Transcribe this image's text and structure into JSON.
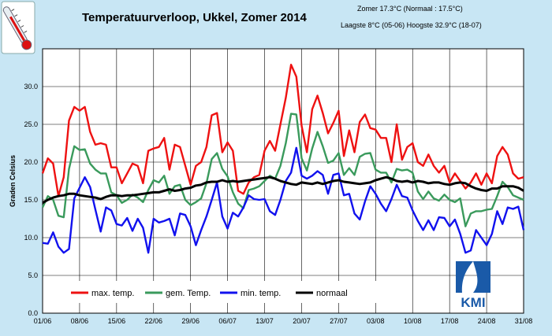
{
  "header": {
    "title": "Temperatuurverloop, Ukkel, Zomer 2014",
    "season_line": "Zomer 17.3°C (Normaal : 17.5°C)",
    "extremes_line": "Laagste 8°C (05-06) Hoogste 32.9°C (18-07)"
  },
  "logo": {
    "text": "KMI"
  },
  "chart_data": {
    "type": "line",
    "ylabel": "Graden Celsius",
    "xlabel": "",
    "ylim": [
      0,
      35
    ],
    "yticks": [
      0,
      5,
      10,
      15,
      20,
      25,
      30
    ],
    "ytick_labels": [
      "0.0",
      "5.0",
      "10.0",
      "15.0",
      "20.0",
      "25.0",
      "30.0"
    ],
    "x_tick_labels": [
      "01/06",
      "08/06",
      "15/06",
      "22/06",
      "29/06",
      "06/07",
      "13/07",
      "20/07",
      "27/07",
      "03/08",
      "10/08",
      "17/08",
      "24/08",
      "31/08"
    ],
    "x_tick_positions": [
      0,
      7,
      14,
      21,
      28,
      35,
      42,
      49,
      56,
      63,
      70,
      77,
      84,
      91
    ],
    "xlim": [
      0,
      91
    ],
    "grid": true,
    "legend_position": "bottom",
    "series": [
      {
        "name": "max. temp.",
        "color": "#ee1111",
        "values": [
          18.5,
          20.5,
          19.8,
          15.5,
          18,
          25.5,
          27.3,
          26.8,
          27.3,
          24,
          22.3,
          22.5,
          22.3,
          19.3,
          19.3,
          17.2,
          18.5,
          19.8,
          19.5,
          17.2,
          21.5,
          21.8,
          22,
          23.2,
          19,
          22.3,
          22,
          19.5,
          17,
          19.5,
          20,
          22,
          26.2,
          26.5,
          21.3,
          22.6,
          21.5,
          16.2,
          15.8,
          17.3,
          18,
          18.3,
          21.5,
          22.8,
          21.5,
          25,
          28.5,
          32.9,
          31.3,
          24.8,
          21.3,
          27,
          28.8,
          26.5,
          23.8,
          25.2,
          26.8,
          20.8,
          24.2,
          21.3,
          25.3,
          26.3,
          24.5,
          24.3,
          23.2,
          23.2,
          20,
          25,
          20.3,
          22,
          22.5,
          20,
          19.5,
          21,
          19.5,
          18.6,
          19.5,
          17.3,
          18.5,
          17.5,
          16.5,
          17.3,
          18.5,
          17,
          18.5,
          17.2,
          20.8,
          22,
          21,
          18.5,
          17.8,
          18
        ]
      },
      {
        "name": "gem. Temp.",
        "color": "#3a9a5c",
        "values": [
          14,
          15.5,
          15,
          12.9,
          12.7,
          19.1,
          22.1,
          21.6,
          21.7,
          19.8,
          19,
          18.5,
          18.5,
          16,
          15.6,
          14.6,
          15,
          15.7,
          15.3,
          14.7,
          16.3,
          17.6,
          17.3,
          18.2,
          15.8,
          16.8,
          17,
          15,
          14.3,
          14.7,
          15.2,
          17.2,
          20.4,
          21.2,
          19.1,
          18.1,
          16,
          14.5,
          13.9,
          16.3,
          16.5,
          16.8,
          17.5,
          18.2,
          17.8,
          19.5,
          22.5,
          26.4,
          26.3,
          20.5,
          18.9,
          21.8,
          24,
          22.1,
          19.9,
          20.2,
          21.2,
          18.3,
          19.2,
          18.3,
          20.7,
          21.1,
          21.2,
          19,
          18.6,
          18.6,
          17.3,
          19.1,
          18.9,
          19,
          18.6,
          16.1,
          15.1,
          16.1,
          15.2,
          14.9,
          15.7,
          15,
          14.7,
          15.2,
          11.5,
          13.2,
          13.5,
          13.5,
          13.7,
          13.8,
          15.5,
          17.4,
          16.7,
          15.6,
          15.3,
          15
        ]
      },
      {
        "name": "min. temp.",
        "color": "#1111ee",
        "values": [
          9.3,
          9.2,
          10.7,
          8.8,
          8,
          8.5,
          15.2,
          16.6,
          18,
          16.7,
          13.7,
          10.8,
          14,
          13.6,
          11.8,
          11.6,
          12.6,
          10.9,
          12.5,
          11.3,
          8,
          12.5,
          12,
          12.2,
          12.5,
          10.3,
          13.2,
          13,
          11.5,
          9,
          11,
          12.8,
          15,
          17.3,
          12.8,
          11.2,
          13.3,
          12.8,
          14,
          15.6,
          15.1,
          15,
          15.1,
          13.5,
          13,
          15,
          17.5,
          18.6,
          21.9,
          18.2,
          17.8,
          18.2,
          18.8,
          18.3,
          15.8,
          18.3,
          18.5,
          15.6,
          15.8,
          13.2,
          12.4,
          14.8,
          16.8,
          15.8,
          14.5,
          13.5,
          15.1,
          17,
          15.5,
          15.3,
          13.6,
          12.2,
          11,
          12.3,
          11,
          12.7,
          12.6,
          11.5,
          12.4,
          10.5,
          8,
          8.3,
          11,
          10,
          9,
          10.5,
          13.5,
          11.8,
          14,
          13.8,
          14.1,
          11
        ]
      },
      {
        "name": "normaal",
        "color": "#000000",
        "values": [
          14.6,
          15,
          15.3,
          15.5,
          15.6,
          15.8,
          15.8,
          15.6,
          15.5,
          15.4,
          15.3,
          15.1,
          15.4,
          15.6,
          15.6,
          15.5,
          15.6,
          15.6,
          15.7,
          15.8,
          15.9,
          16,
          16,
          16.2,
          16.4,
          16.2,
          16.3,
          16.5,
          16.6,
          16.9,
          17,
          17.3,
          17.4,
          17.4,
          17.6,
          17.4,
          17.5,
          17.4,
          17.5,
          17.6,
          17.7,
          17.8,
          17.9,
          18,
          17.8,
          17.5,
          17.3,
          17.1,
          17,
          17.3,
          17.2,
          17.1,
          17.3,
          17.1,
          17.3,
          17.5,
          17.6,
          17.4,
          17.3,
          17.2,
          17.1,
          17.2,
          17.3,
          17.6,
          17.8,
          18,
          17.8,
          17.5,
          17.4,
          17.5,
          17.3,
          17.5,
          17.4,
          17.2,
          17.3,
          17.3,
          17.1,
          17,
          17.2,
          17.3,
          17.2,
          16.8,
          16.5,
          16.3,
          16.2,
          16.5,
          16.5,
          16.8,
          16.8,
          16.8,
          16.6,
          16.2
        ]
      }
    ]
  }
}
